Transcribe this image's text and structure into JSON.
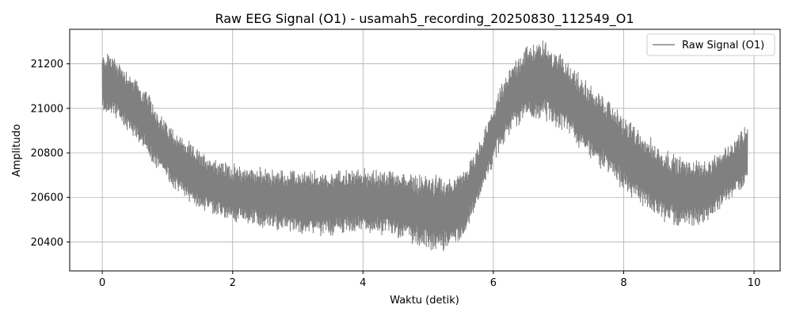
{
  "chart_data": {
    "type": "line",
    "title": "Raw EEG Signal (O1) - usamah5_recording_20250830_112549_O1",
    "xlabel": "Waktu (detik)",
    "ylabel": "Amplitudo",
    "xlim": [
      -0.5,
      10.4
    ],
    "ylim": [
      20270,
      21355
    ],
    "xticks": [
      0,
      2,
      4,
      6,
      8,
      10
    ],
    "xtick_labels": [
      "0",
      "2",
      "4",
      "6",
      "8",
      "10"
    ],
    "yticks": [
      20400,
      20600,
      20800,
      21000,
      21200
    ],
    "ytick_labels": [
      "20400",
      "20600",
      "20800",
      "21000",
      "21200"
    ],
    "grid": true,
    "legend_position": "top-right",
    "series": [
      {
        "name": "Raw Signal (O1)",
        "color": "#808080",
        "envelope": {
          "x": [
            0.0,
            0.1,
            0.3,
            0.5,
            0.7,
            0.9,
            1.2,
            1.5,
            1.8,
            2.0,
            2.5,
            3.0,
            3.5,
            4.0,
            4.5,
            5.0,
            5.3,
            5.5,
            5.7,
            5.9,
            6.1,
            6.3,
            6.5,
            6.7,
            6.9,
            7.1,
            7.3,
            7.5,
            7.8,
            8.0,
            8.3,
            8.6,
            8.9,
            9.1,
            9.3,
            9.5,
            9.7,
            9.9
          ],
          "upper": [
            21230,
            21250,
            21190,
            21130,
            21060,
            20960,
            20870,
            20800,
            20760,
            20740,
            20720,
            20710,
            20710,
            20720,
            20710,
            20690,
            20680,
            20700,
            20780,
            20920,
            21080,
            21200,
            21270,
            21300,
            21270,
            21220,
            21150,
            21090,
            21020,
            20960,
            20880,
            20810,
            20770,
            20760,
            20760,
            20790,
            20860,
            20930
          ],
          "lower": [
            20980,
            20990,
            20930,
            20870,
            20790,
            20710,
            20620,
            20560,
            20520,
            20500,
            20470,
            20450,
            20440,
            20450,
            20430,
            20370,
            20380,
            20420,
            20530,
            20690,
            20830,
            20920,
            20960,
            20960,
            20940,
            20900,
            20840,
            20780,
            20700,
            20640,
            20560,
            20500,
            20480,
            20480,
            20510,
            20560,
            20620,
            20660
          ]
        }
      }
    ]
  }
}
